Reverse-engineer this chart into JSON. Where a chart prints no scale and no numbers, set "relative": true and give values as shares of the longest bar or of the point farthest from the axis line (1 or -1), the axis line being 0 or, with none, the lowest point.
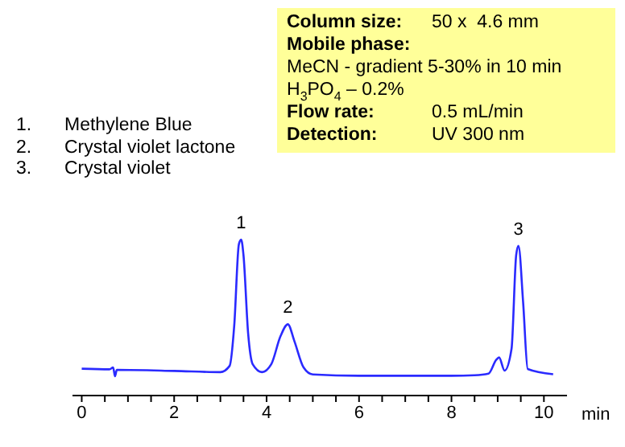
{
  "chart_data": {
    "type": "line",
    "relative": true,
    "xlabel": "min",
    "x": [
      0,
      0.6,
      0.68,
      0.72,
      0.76,
      2,
      3,
      3.2,
      3.3,
      3.4,
      3.45,
      3.5,
      3.6,
      3.7,
      3.9,
      4.1,
      4.3,
      4.46,
      4.6,
      4.8,
      5,
      6,
      8,
      8.5,
      8.8,
      8.97,
      9.03,
      9.15,
      9.3,
      9.4,
      9.45,
      9.55,
      9.65,
      10.2
    ],
    "series": [
      {
        "color": "#2a2aff",
        "values": [
          0.172,
          0.168,
          0.18,
          0.124,
          0.165,
          0.158,
          0.15,
          0.19,
          0.45,
          0.97,
          1,
          0.9,
          0.4,
          0.2,
          0.15,
          0.2,
          0.38,
          0.457,
          0.35,
          0.18,
          0.135,
          0.127,
          0.127,
          0.13,
          0.14,
          0.23,
          0.244,
          0.16,
          0.3,
          0.9,
          0.96,
          0.6,
          0.17,
          0.137
        ]
      }
    ],
    "xlim": [
      -0.2,
      10.5
    ],
    "xticks": [
      0,
      {
        "value": 0.5,
        "label": null
      },
      {
        "value": 1,
        "label": null
      },
      {
        "value": 1.5,
        "label": null
      },
      2,
      {
        "value": 2.5,
        "label": null
      },
      {
        "value": 3,
        "label": null
      },
      {
        "value": 3.5,
        "label": null
      },
      4,
      {
        "value": 4.5,
        "label": null
      },
      {
        "value": 5,
        "label": null
      },
      {
        "value": 5.5,
        "label": null
      },
      6,
      {
        "value": 6.5,
        "label": null
      },
      {
        "value": 7,
        "label": null
      },
      {
        "value": 7.5,
        "label": null
      },
      8,
      {
        "value": 8.5,
        "label": null
      },
      {
        "value": 9,
        "label": null
      },
      {
        "value": 9.5,
        "label": null
      },
      10
    ],
    "marker": "none",
    "line_style": "solid",
    "annotations": [
      {
        "text": "1",
        "x": 3.45,
        "y": 1
      },
      {
        "text": "2",
        "x": 4.46,
        "y": 0.457
      },
      {
        "text": "3",
        "x": 9.45,
        "y": 0.96
      },
      "1.",
      "Methylene Blue",
      "2.",
      "Crystal violet lactone",
      "3.",
      "Crystal violet",
      "Column size:",
      "50 x  4.6 mm",
      "Mobile phase:",
      "MeCN - gradient 5-30% in 10 min",
      "H$_{3}$PO$_{4}$ – 0.2%",
      "Flow rate:",
      "0.5 mL/min",
      "Detection:",
      "UV 300 nm"
    ]
  }
}
